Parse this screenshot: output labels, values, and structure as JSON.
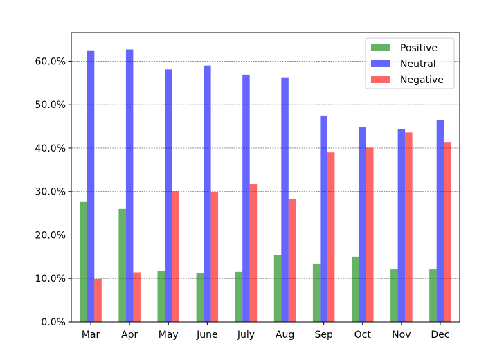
{
  "chart_data": {
    "type": "bar",
    "title": "",
    "xlabel": "",
    "ylabel": "",
    "categories": [
      "Mar",
      "Apr",
      "May",
      "June",
      "July",
      "Aug",
      "Sep",
      "Oct",
      "Nov",
      "Dec"
    ],
    "series": [
      {
        "name": "Positive",
        "color": "#008000",
        "values": [
          27.6,
          26.0,
          11.8,
          11.2,
          11.5,
          15.4,
          13.4,
          15.0,
          12.1,
          12.1
        ]
      },
      {
        "name": "Neutral",
        "color": "#0000ff",
        "values": [
          62.5,
          62.7,
          58.1,
          59.0,
          56.9,
          56.3,
          47.5,
          44.9,
          44.3,
          46.4
        ]
      },
      {
        "name": "Negative",
        "color": "#ff0000",
        "values": [
          9.9,
          11.4,
          30.1,
          29.9,
          31.7,
          28.3,
          39.0,
          40.1,
          43.6,
          41.4
        ]
      }
    ],
    "ylim": [
      0,
      66.6
    ],
    "yticks": [
      0,
      10,
      20,
      30,
      40,
      50,
      60
    ],
    "ytick_labels": [
      "0.0%",
      "10.0%",
      "20.0%",
      "30.0%",
      "40.0%",
      "50.0%",
      "60.0%"
    ],
    "grid": "y-dashed",
    "legend_position": "top-right",
    "bar_opacity": 0.6
  }
}
